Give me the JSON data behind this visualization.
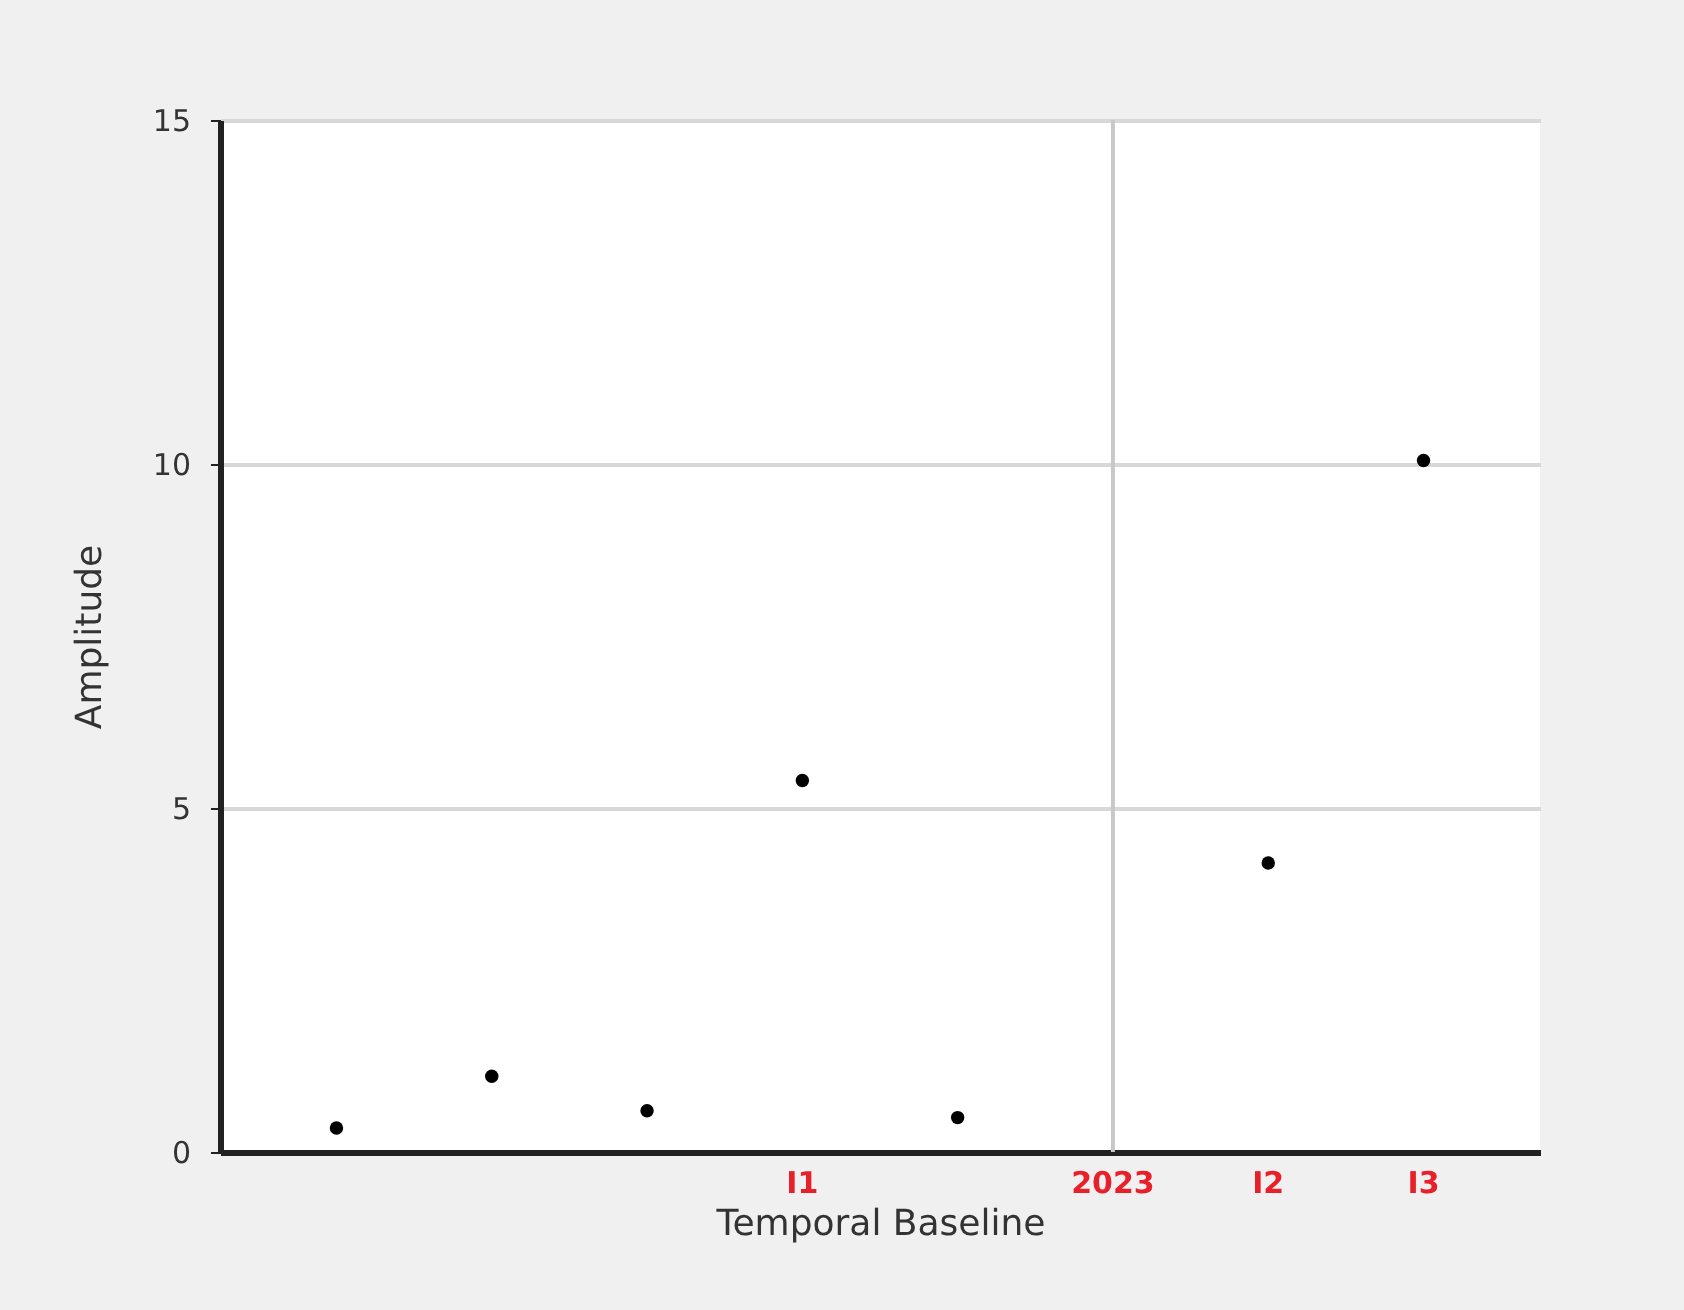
{
  "chart_data": {
    "type": "scatter",
    "xlabel": "Temporal Baseline",
    "ylabel": "Amplitude",
    "categories": [
      null,
      null,
      null,
      "I1",
      null,
      "2023",
      "I2",
      "I3"
    ],
    "series": [
      {
        "color": "#000000",
        "values": [
          0.35,
          1.1,
          0.6,
          5.4,
          0.5,
          null,
          4.2,
          10.05
        ]
      }
    ],
    "ylim": [
      0,
      15
    ],
    "yticks": [
      0,
      5,
      10,
      15
    ],
    "grid": "y",
    "marker": "circle",
    "ref_lines": [
      {
        "axis": "x",
        "value": "2023",
        "color": "#c8c8c8"
      }
    ]
  }
}
